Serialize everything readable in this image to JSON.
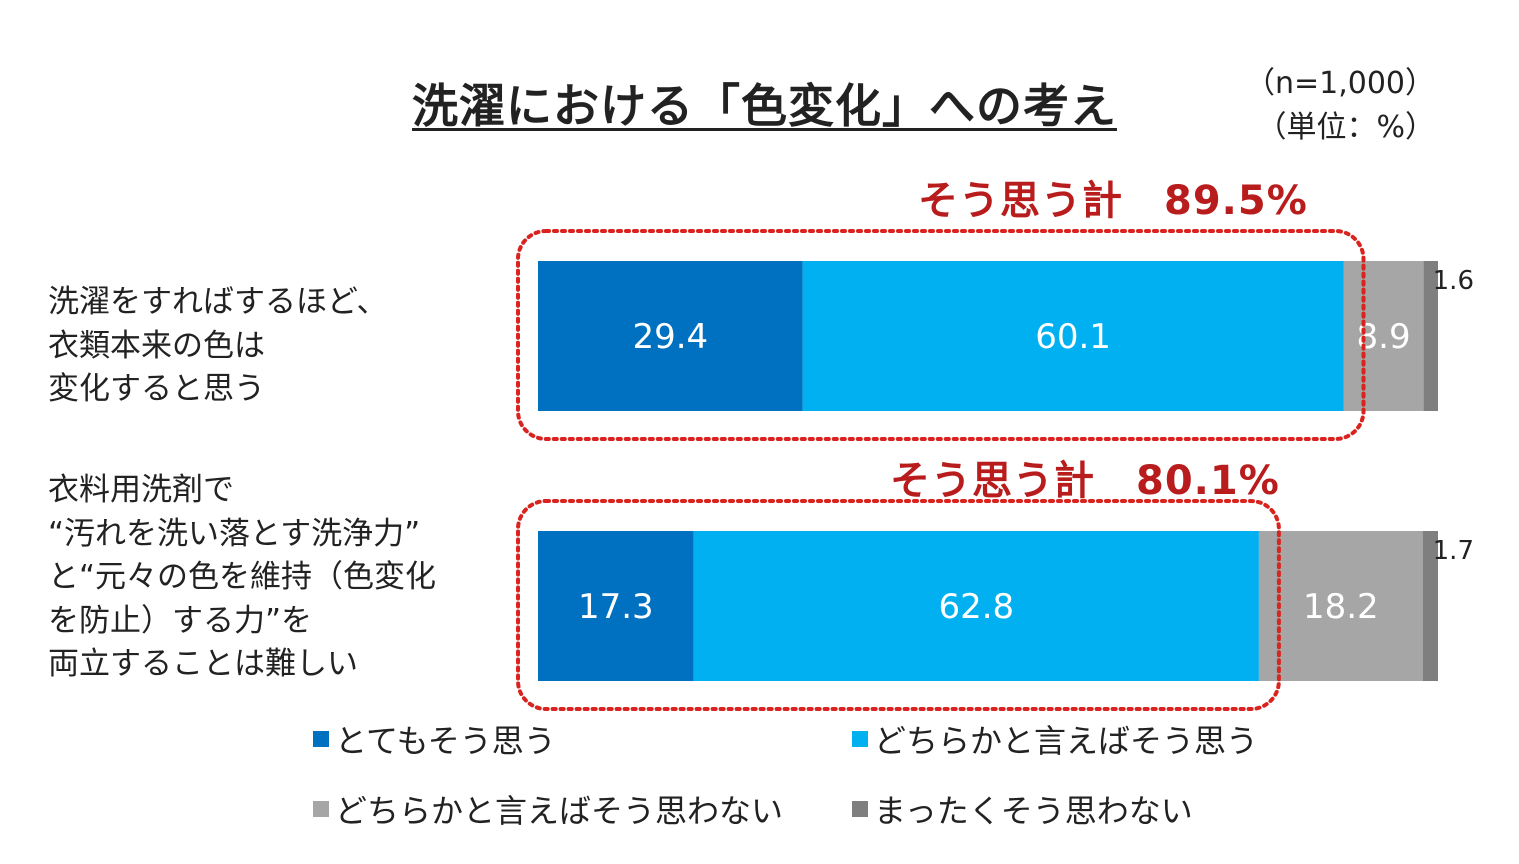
{
  "title": "洗濯における「色変化」への考え",
  "sample_note": "（n=1,000）",
  "unit_note": "（単位：%）",
  "categories": [
    {
      "lines": [
        "洗濯をすればするほど、",
        "衣類本来の色は",
        "変化すると思う"
      ]
    },
    {
      "lines": [
        "衣料用洗剤で",
        "“汚れを洗い落とす洗浄力”",
        "と“元々の色を維持（色変化",
        "を防止）する力”を",
        "両立することは難しい"
      ]
    }
  ],
  "totals": [
    "そう思う計　89.5%",
    "そう思う計　80.1%"
  ],
  "legend": [
    {
      "label": "とてもそう思う",
      "color": "#0070c0"
    },
    {
      "label": "どちらかと言えばそう思う",
      "color": "#00b0f0"
    },
    {
      "label": "どちらかと言えばそう思わない",
      "color": "#a6a6a6"
    },
    {
      "label": "まったくそう思わない",
      "color": "#7f7f7f"
    }
  ],
  "chart_data": {
    "type": "bar",
    "orientation": "horizontal",
    "stacked": true,
    "categories": [
      "洗濯をすればするほど、衣類本来の色は変化すると思う",
      "衣料用洗剤で“汚れを洗い落とす洗浄力”と“元々の色を維持（色変化を防止）する力”を両立することは難しい"
    ],
    "series": [
      {
        "name": "とてもそう思う",
        "values": [
          29.4,
          17.3
        ],
        "labels": [
          "29.4",
          "17.3"
        ],
        "color": "#0070c0"
      },
      {
        "name": "どちらかと言えばそう思う",
        "values": [
          60.1,
          62.8
        ],
        "labels": [
          "60.1",
          "62.8"
        ],
        "color": "#00b0f0"
      },
      {
        "name": "どちらかと言えばそう思わない",
        "values": [
          8.9,
          18.2
        ],
        "labels": [
          "8.9",
          "18.2"
        ],
        "color": "#a6a6a6"
      },
      {
        "name": "まったくそう思わない",
        "values": [
          1.6,
          1.7
        ],
        "labels": [
          "1.6",
          "1.7"
        ],
        "color": "#7f7f7f"
      }
    ],
    "xlim": [
      0,
      100
    ],
    "grid": false,
    "legend_position": "bottom"
  }
}
